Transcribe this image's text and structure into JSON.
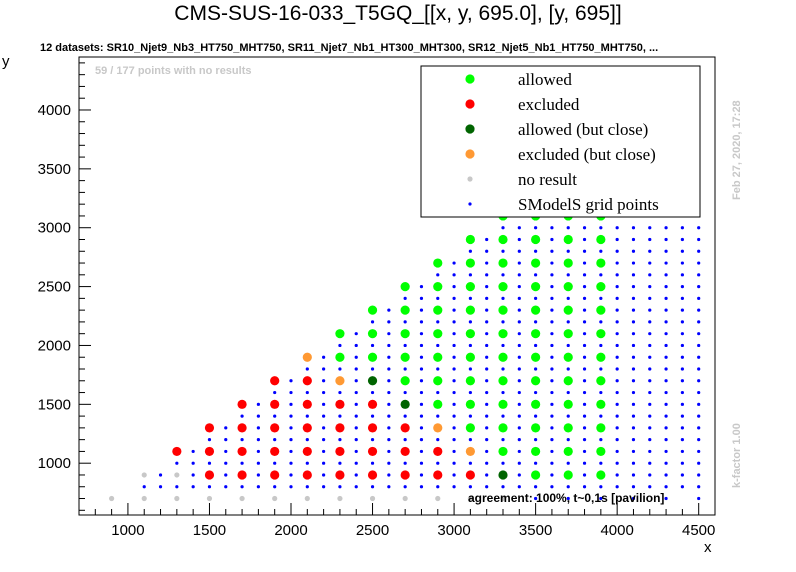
{
  "title": "CMS-SUS-16-033_T5GQ_[[x, y, 695.0], [y, 695]]",
  "subtitle": "12 datasets: SR10_Njet9_Nb3_HT750_MHT750, SR11_Njet7_Nb1_HT300_MHT300, SR12_Njet5_Nb1_HT750_MHT750,  ...",
  "no_results_note": "59 / 177 points with no results",
  "date_note": "Feb 27, 2020, 17:28",
  "kfactor_note": "k-factor 1.00",
  "agreement_note": "agreement: 100%, t~0,1s [pavilion]",
  "colors": {
    "allowed": "#00ff00",
    "excluded": "#ff0000",
    "allowed_close": "#006400",
    "excluded_close": "#ff9933",
    "no_result": "#c8c8c8",
    "grid": "#0000ff"
  },
  "chart_data": {
    "type": "scatter",
    "title": "CMS-SUS-16-033_T5GQ_[[x, y, 695.0], [y, 695]]",
    "xlabel": "x",
    "ylabel": "y",
    "xlim": [
      700,
      4600
    ],
    "ylim": [
      560,
      4450
    ],
    "xticks": [
      1000,
      1500,
      2000,
      2500,
      3000,
      3500,
      4000,
      4500
    ],
    "yticks": [
      1000,
      1500,
      2000,
      2500,
      3000,
      3500,
      4000
    ],
    "legend_position": "top-right",
    "legend": [
      "allowed",
      "excluded",
      "allowed (but close)",
      "excluded (but close)",
      "no result",
      "SModelS grid points"
    ],
    "series": [
      {
        "name": "allowed",
        "points": [
          [
            2300,
            1900
          ],
          [
            2300,
            2100
          ],
          [
            2500,
            1900
          ],
          [
            2500,
            2100
          ],
          [
            2500,
            2300
          ],
          [
            2700,
            1700
          ],
          [
            2700,
            1900
          ],
          [
            2700,
            2100
          ],
          [
            2700,
            2300
          ],
          [
            2700,
            2500
          ],
          [
            2900,
            1500
          ],
          [
            2900,
            1700
          ],
          [
            2900,
            1900
          ],
          [
            2900,
            2100
          ],
          [
            2900,
            2300
          ],
          [
            2900,
            2500
          ],
          [
            2900,
            2700
          ],
          [
            3100,
            1300
          ],
          [
            3100,
            1500
          ],
          [
            3100,
            1700
          ],
          [
            3100,
            1900
          ],
          [
            3100,
            2100
          ],
          [
            3100,
            2300
          ],
          [
            3100,
            2500
          ],
          [
            3100,
            2700
          ],
          [
            3100,
            2900
          ],
          [
            3300,
            1100
          ],
          [
            3300,
            1300
          ],
          [
            3300,
            1500
          ],
          [
            3300,
            1700
          ],
          [
            3300,
            1900
          ],
          [
            3300,
            2100
          ],
          [
            3300,
            2300
          ],
          [
            3300,
            2500
          ],
          [
            3300,
            2700
          ],
          [
            3300,
            2900
          ],
          [
            3300,
            3100
          ],
          [
            3500,
            900
          ],
          [
            3500,
            1100
          ],
          [
            3500,
            1300
          ],
          [
            3500,
            1500
          ],
          [
            3500,
            1700
          ],
          [
            3500,
            1900
          ],
          [
            3500,
            2100
          ],
          [
            3500,
            2300
          ],
          [
            3500,
            2500
          ],
          [
            3500,
            2700
          ],
          [
            3500,
            2900
          ],
          [
            3500,
            3100
          ],
          [
            3500,
            3300
          ],
          [
            3700,
            900
          ],
          [
            3700,
            1100
          ],
          [
            3700,
            1300
          ],
          [
            3700,
            1500
          ],
          [
            3700,
            1700
          ],
          [
            3700,
            1900
          ],
          [
            3700,
            2100
          ],
          [
            3700,
            2300
          ],
          [
            3700,
            2500
          ],
          [
            3700,
            2700
          ],
          [
            3700,
            2900
          ],
          [
            3700,
            3100
          ],
          [
            3700,
            3300
          ],
          [
            3700,
            3500
          ],
          [
            3900,
            900
          ],
          [
            3900,
            1100
          ],
          [
            3900,
            1300
          ],
          [
            3900,
            1500
          ],
          [
            3900,
            1700
          ],
          [
            3900,
            1900
          ],
          [
            3900,
            2100
          ],
          [
            3900,
            2300
          ],
          [
            3900,
            2500
          ],
          [
            3900,
            2700
          ],
          [
            3900,
            2900
          ],
          [
            3900,
            3100
          ],
          [
            3900,
            3300
          ],
          [
            3900,
            3500
          ],
          [
            3900,
            3700
          ]
        ]
      },
      {
        "name": "excluded",
        "points": [
          [
            1300,
            1100
          ],
          [
            1500,
            900
          ],
          [
            1500,
            1100
          ],
          [
            1500,
            1300
          ],
          [
            1700,
            900
          ],
          [
            1700,
            1100
          ],
          [
            1700,
            1300
          ],
          [
            1700,
            1500
          ],
          [
            1900,
            900
          ],
          [
            1900,
            1100
          ],
          [
            1900,
            1300
          ],
          [
            1900,
            1500
          ],
          [
            1900,
            1700
          ],
          [
            2100,
            900
          ],
          [
            2100,
            1100
          ],
          [
            2100,
            1300
          ],
          [
            2100,
            1500
          ],
          [
            2100,
            1700
          ],
          [
            2300,
            900
          ],
          [
            2300,
            1100
          ],
          [
            2300,
            1300
          ],
          [
            2300,
            1500
          ],
          [
            2500,
            900
          ],
          [
            2500,
            1100
          ],
          [
            2500,
            1300
          ],
          [
            2500,
            1500
          ],
          [
            2700,
            900
          ],
          [
            2700,
            1100
          ],
          [
            2700,
            1300
          ],
          [
            2900,
            900
          ],
          [
            2900,
            1100
          ],
          [
            3100,
            900
          ]
        ]
      },
      {
        "name": "allowed (but close)",
        "points": [
          [
            2500,
            1700
          ],
          [
            2700,
            1500
          ],
          [
            3300,
            900
          ]
        ]
      },
      {
        "name": "excluded (but close)",
        "points": [
          [
            2100,
            1900
          ],
          [
            2300,
            1700
          ],
          [
            2900,
            1300
          ],
          [
            3100,
            1100
          ]
        ]
      },
      {
        "name": "no result",
        "points": [
          [
            900,
            700
          ],
          [
            1100,
            700
          ],
          [
            1100,
            900
          ],
          [
            1300,
            700
          ],
          [
            1300,
            900
          ],
          [
            1500,
            700
          ],
          [
            1700,
            700
          ],
          [
            1900,
            700
          ],
          [
            2100,
            700
          ],
          [
            2300,
            700
          ],
          [
            2500,
            700
          ],
          [
            2700,
            700
          ],
          [
            2900,
            700
          ],
          [
            3100,
            700
          ],
          [
            3300,
            700
          ]
        ]
      }
    ]
  }
}
